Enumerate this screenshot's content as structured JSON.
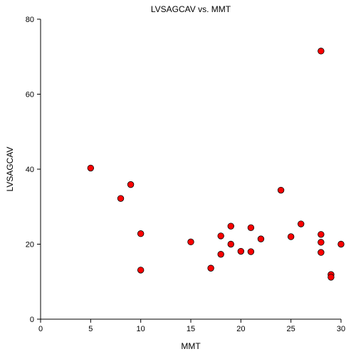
{
  "chart_data": {
    "type": "scatter",
    "title": "LVSAGCAV vs. MMT",
    "xlabel": "MMT",
    "ylabel": "LVSAGCAV",
    "xlim": [
      0,
      30
    ],
    "ylim": [
      0,
      80
    ],
    "xticks": [
      "0",
      "5",
      "10",
      "15",
      "20",
      "25",
      "30"
    ],
    "yticks": [
      "0",
      "20",
      "40",
      "60",
      "80"
    ],
    "grid": false,
    "marker_color": "#ff0000",
    "points": [
      {
        "x": 5,
        "y": 40.3
      },
      {
        "x": 8,
        "y": 32.2
      },
      {
        "x": 9,
        "y": 35.9
      },
      {
        "x": 10,
        "y": 22.8
      },
      {
        "x": 10,
        "y": 13.1
      },
      {
        "x": 15,
        "y": 20.6
      },
      {
        "x": 17,
        "y": 13.6
      },
      {
        "x": 18,
        "y": 22.2
      },
      {
        "x": 18,
        "y": 17.3
      },
      {
        "x": 19,
        "y": 24.8
      },
      {
        "x": 19,
        "y": 20.0
      },
      {
        "x": 20,
        "y": 18.1
      },
      {
        "x": 21,
        "y": 24.4
      },
      {
        "x": 21,
        "y": 18.0
      },
      {
        "x": 22,
        "y": 21.4
      },
      {
        "x": 24,
        "y": 34.4
      },
      {
        "x": 25,
        "y": 22.0
      },
      {
        "x": 26,
        "y": 25.4
      },
      {
        "x": 28,
        "y": 71.5
      },
      {
        "x": 28,
        "y": 22.6
      },
      {
        "x": 28,
        "y": 20.5
      },
      {
        "x": 28,
        "y": 17.8
      },
      {
        "x": 29,
        "y": 11.9
      },
      {
        "x": 29,
        "y": 11.2
      },
      {
        "x": 30,
        "y": 20.0
      }
    ]
  }
}
